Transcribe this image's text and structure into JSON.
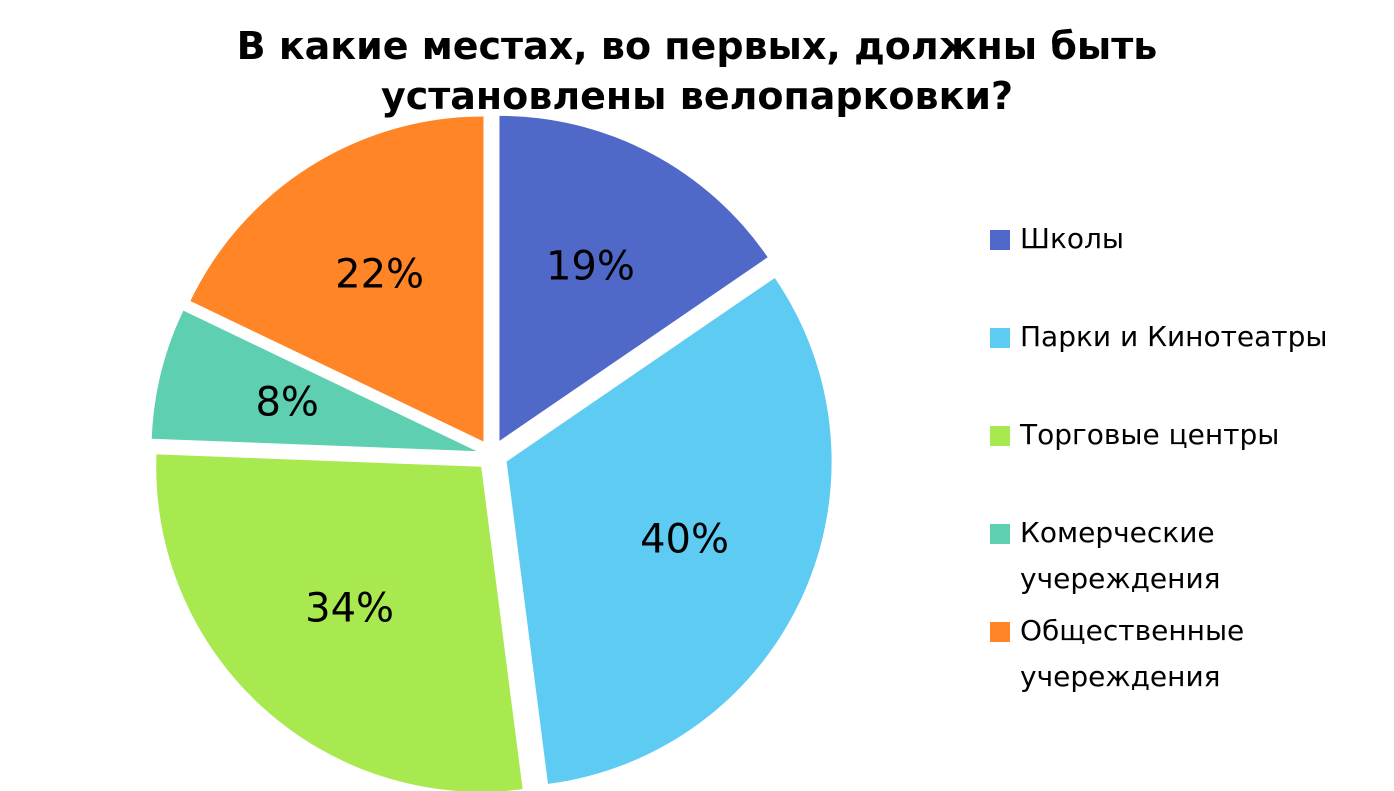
{
  "chart_data": {
    "type": "pie",
    "title": "В какие местах, во первых, должны быть установлены велопарковки?",
    "categories": [
      "Школы",
      "Парки и Кинотеатры",
      "Торговые центры",
      "Комерческие учереждения",
      "Общественные учереждения"
    ],
    "values": [
      19,
      40,
      34,
      8,
      22
    ],
    "value_labels": [
      "19%",
      "40%",
      "34%",
      "8%",
      "22%"
    ],
    "colors": [
      "#5068c8",
      "#5ecbf3",
      "#a7e94f",
      "#5ecfb1",
      "#ff8527"
    ],
    "legend": "right"
  }
}
